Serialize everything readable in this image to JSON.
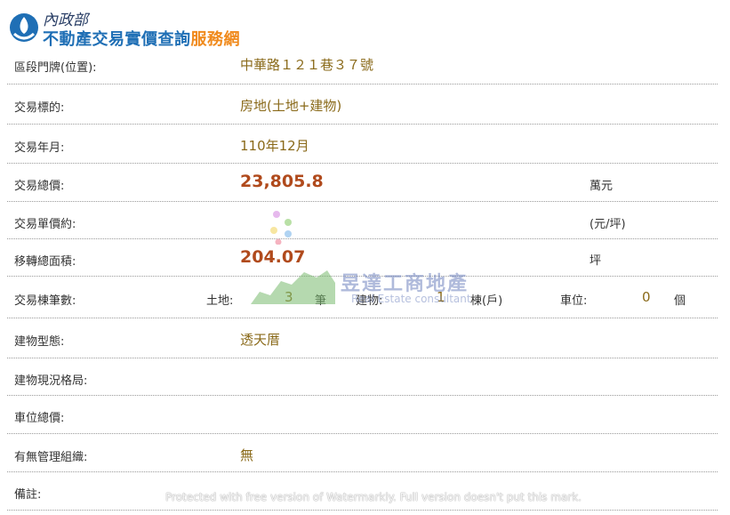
{
  "header": {
    "ministry": "內政部",
    "title_part1": "不動產交易實價查詢",
    "title_part2": "服務網"
  },
  "rows": {
    "address": {
      "label": "區段門牌(位置):",
      "value": "中華路１２１巷３７號"
    },
    "target": {
      "label": "交易標的:",
      "value": "房地(土地+建物)"
    },
    "date": {
      "label": "交易年月:",
      "value": "110年12月"
    },
    "total_price": {
      "label": "交易總價:",
      "value": "23,805.8",
      "unit": "萬元"
    },
    "unit_price": {
      "label": "交易單價約:",
      "value": "",
      "unit": "(元/坪)"
    },
    "area": {
      "label": "移轉總面積:",
      "value": "204.07",
      "unit": "坪"
    },
    "counts": {
      "label": "交易棟筆數:",
      "land_label": "土地:",
      "land_value": "3",
      "land_unit": "筆",
      "building_label": "建物:",
      "building_value": "1",
      "building_unit": "棟(戶)",
      "parking_label": "車位:",
      "parking_value": "0",
      "parking_unit": "個"
    },
    "building_type": {
      "label": "建物型態:",
      "value": "透天厝"
    },
    "layout": {
      "label": "建物現況格局:",
      "value": ""
    },
    "parking_price": {
      "label": "車位總價:",
      "value": ""
    },
    "management": {
      "label": "有無管理組織:",
      "value": "無"
    },
    "notes": {
      "label": "備註:",
      "value": ""
    }
  },
  "watermark": {
    "brand": "昱達工商地產",
    "brand_sub": "Real Estate consultant",
    "protect": "Protected with free version of Watermarkly. Full version doesn't put this mark."
  },
  "colors": {
    "title_blue": "#1f6fb5",
    "title_orange": "#f08a1c",
    "value_gold": "#8a6a1a",
    "value_red": "#b04a1c"
  }
}
